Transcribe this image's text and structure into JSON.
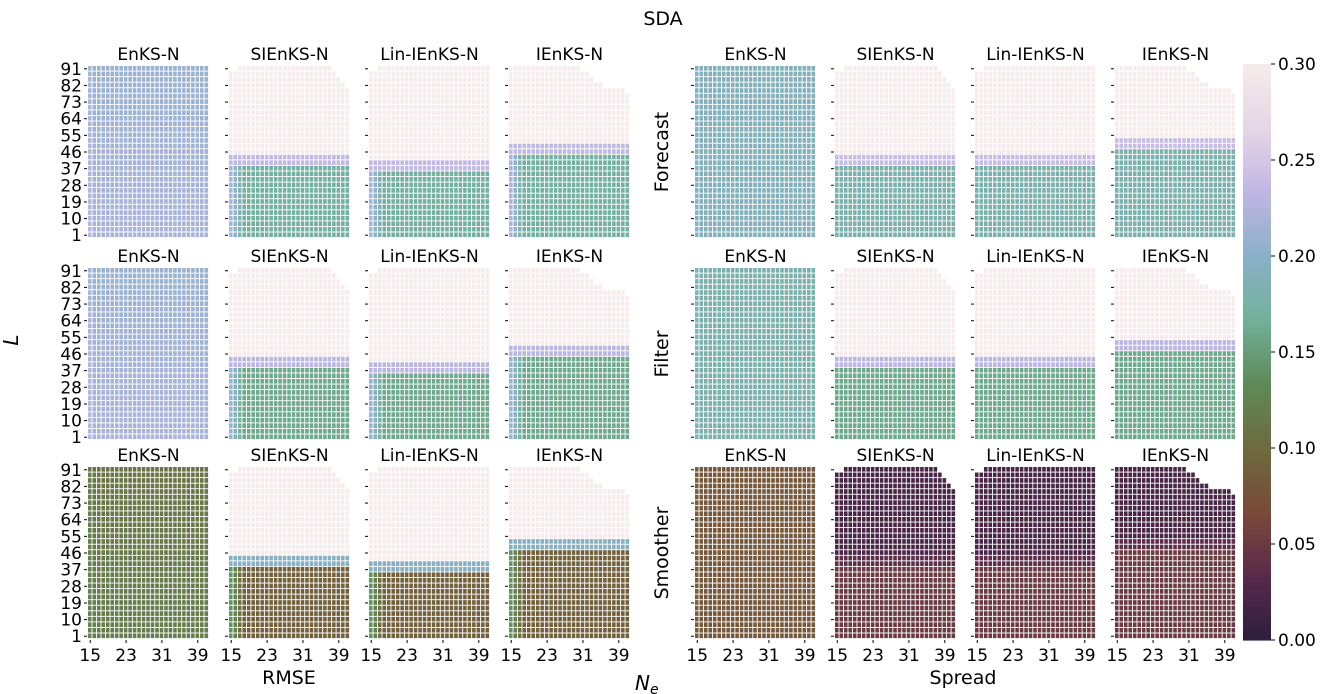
{
  "chart_data": {
    "type": "heatmap",
    "title": "SDA",
    "xlabel": "N_e",
    "ylabel": "L",
    "left_group_label": "RMSE",
    "right_group_label": "Spread",
    "methods": [
      "EnKS-N",
      "SIEnKS-N",
      "Lin-IEnKS-N",
      "IEnKS-N"
    ],
    "rows": [
      "Forecast",
      "Filter",
      "Smoother"
    ],
    "x_values": [
      15,
      16,
      17,
      18,
      19,
      20,
      21,
      22,
      23,
      24,
      25,
      26,
      27,
      28,
      29,
      30,
      31,
      32,
      33,
      34,
      35,
      36,
      37,
      38,
      39,
      40,
      41
    ],
    "x_tick_labels": [
      "15",
      "23",
      "31",
      "39"
    ],
    "y_values": [
      1,
      4,
      7,
      10,
      13,
      16,
      19,
      22,
      25,
      28,
      31,
      34,
      37,
      40,
      43,
      46,
      49,
      52,
      55,
      58,
      61,
      64,
      67,
      70,
      73,
      76,
      79,
      82,
      85,
      88,
      91
    ],
    "y_tick_labels": [
      "91",
      "82",
      "73",
      "64",
      "55",
      "46",
      "37",
      "28",
      "19",
      "10",
      "1"
    ],
    "colorbar": {
      "vmin": 0.0,
      "vmax": 0.3,
      "ticks": [
        "0.30",
        "0.25",
        "0.20",
        "0.15",
        "0.10",
        "0.05",
        "0.00"
      ],
      "colormap": "cubehelix (light pink to dark purple)"
    },
    "color_stops": [
      "#2d1e3e",
      "#5a2a4a",
      "#7a4a3a",
      "#6e6a3e",
      "#5e8a58",
      "#72b09a",
      "#8ab0c8",
      "#c0b6e4",
      "#e6d6e6",
      "#f6ecec"
    ],
    "panels": {
      "RMSE": {
        "Forecast": {
          "EnKS-N": {
            "max_L": [
              91
            ],
            "approx_value": 0.21,
            "value_low_L": 0.22,
            "value_high_L": 0.21
          },
          "SIEnKS-N": {
            "max_L": [
              88,
              88,
              91,
              91,
              91,
              91,
              91,
              91,
              91,
              91,
              91,
              91,
              91,
              91,
              91,
              91,
              91,
              91,
              91,
              91,
              91,
              91,
              91,
              88,
              85,
              82,
              79
            ],
            "transition_L": 43,
            "value_low_L": 0.17,
            "value_high_L": 0.3
          },
          "Lin-IEnKS-N": {
            "max_L": [
              88,
              88,
              91,
              91,
              91,
              91,
              91,
              91,
              91,
              91,
              91,
              91,
              91,
              91,
              91,
              91,
              91,
              91,
              91,
              91,
              91,
              91,
              91,
              91,
              91,
              91,
              91
            ],
            "transition_L": 40,
            "value_low_L": 0.17,
            "value_high_L": 0.3
          },
          "IEnKS-N": {
            "max_L": [
              91,
              91,
              91,
              91,
              91,
              91,
              91,
              91,
              91,
              91,
              91,
              91,
              91,
              91,
              91,
              91,
              88,
              88,
              85,
              82,
              82,
              79,
              79,
              79,
              79,
              79,
              76
            ],
            "transition_L": 49,
            "value_low_L": 0.17,
            "value_high_L": 0.3
          }
        },
        "Filter": {
          "EnKS-N": {
            "max_L": [
              91
            ],
            "approx_value": 0.21,
            "value_low_L": 0.22,
            "value_high_L": 0.21
          },
          "SIEnKS-N": {
            "max_L": [
              88,
              88,
              91,
              91,
              91,
              91,
              91,
              91,
              91,
              91,
              91,
              91,
              91,
              91,
              91,
              91,
              91,
              91,
              91,
              91,
              91,
              91,
              91,
              88,
              85,
              82,
              79
            ],
            "transition_L": 43,
            "value_low_L": 0.16,
            "value_high_L": 0.3
          },
          "Lin-IEnKS-N": {
            "max_L": [
              88,
              88,
              91,
              91,
              91,
              91,
              91,
              91,
              91,
              91,
              91,
              91,
              91,
              91,
              91,
              91,
              91,
              91,
              91,
              91,
              91,
              91,
              91,
              91,
              91,
              91,
              91
            ],
            "transition_L": 40,
            "value_low_L": 0.16,
            "value_high_L": 0.3
          },
          "IEnKS-N": {
            "max_L": [
              91,
              91,
              91,
              91,
              91,
              91,
              91,
              91,
              91,
              91,
              91,
              91,
              91,
              91,
              91,
              91,
              88,
              88,
              85,
              82,
              82,
              79,
              79,
              79,
              79,
              79,
              76
            ],
            "transition_L": 49,
            "value_low_L": 0.16,
            "value_high_L": 0.3
          }
        },
        "Smoother": {
          "EnKS-N": {
            "max_L": [
              91
            ],
            "value_low_L": 0.12,
            "value_high_L": 0.11
          },
          "SIEnKS-N": {
            "max_L": [
              88,
              88,
              91,
              91,
              91,
              91,
              91,
              91,
              91,
              91,
              91,
              91,
              91,
              91,
              91,
              91,
              91,
              91,
              91,
              91,
              91,
              91,
              91,
              88,
              85,
              82,
              79
            ],
            "transition_L": 43,
            "value_low_L": 0.09,
            "value_high_L": 0.3
          },
          "Lin-IEnKS-N": {
            "max_L": [
              88,
              88,
              91,
              91,
              91,
              91,
              91,
              91,
              91,
              91,
              91,
              91,
              91,
              91,
              91,
              91,
              91,
              91,
              91,
              91,
              91,
              91,
              91,
              91,
              91,
              91,
              91
            ],
            "transition_L": 40,
            "value_low_L": 0.09,
            "value_high_L": 0.3
          },
          "IEnKS-N": {
            "max_L": [
              91,
              91,
              91,
              91,
              91,
              91,
              91,
              91,
              91,
              91,
              91,
              91,
              91,
              91,
              91,
              91,
              88,
              88,
              85,
              82,
              82,
              79,
              79,
              79,
              79,
              79,
              76
            ],
            "transition_L": 52,
            "value_low_L": 0.09,
            "value_high_L": 0.3
          }
        }
      },
      "Spread": {
        "Forecast": {
          "EnKS-N": {
            "max_L": [
              91
            ],
            "value_low_L": 0.19,
            "value_high_L": 0.19
          },
          "SIEnKS-N": {
            "max_L": [
              88,
              88,
              91,
              91,
              91,
              91,
              91,
              91,
              91,
              91,
              91,
              91,
              91,
              91,
              91,
              91,
              91,
              91,
              91,
              91,
              91,
              91,
              91,
              88,
              85,
              82,
              79
            ],
            "transition_L": 43,
            "value_low_L": 0.18,
            "value_high_L": 0.3
          },
          "Lin-IEnKS-N": {
            "max_L": [
              88,
              88,
              91,
              91,
              91,
              91,
              91,
              91,
              91,
              91,
              91,
              91,
              91,
              91,
              91,
              91,
              91,
              91,
              91,
              91,
              91,
              91,
              91,
              91,
              91,
              91,
              91
            ],
            "transition_L": 43,
            "value_low_L": 0.18,
            "value_high_L": 0.3
          },
          "IEnKS-N": {
            "max_L": [
              91,
              91,
              91,
              91,
              91,
              91,
              91,
              91,
              91,
              91,
              91,
              91,
              91,
              91,
              91,
              91,
              88,
              88,
              85,
              82,
              82,
              79,
              79,
              79,
              79,
              79,
              76
            ],
            "transition_L": 52,
            "value_low_L": 0.18,
            "value_high_L": 0.3
          }
        },
        "Filter": {
          "EnKS-N": {
            "max_L": [
              91
            ],
            "value_low_L": 0.18,
            "value_high_L": 0.18
          },
          "SIEnKS-N": {
            "max_L": [
              88,
              88,
              91,
              91,
              91,
              91,
              91,
              91,
              91,
              91,
              91,
              91,
              91,
              91,
              91,
              91,
              91,
              91,
              91,
              91,
              91,
              91,
              91,
              88,
              85,
              82,
              79
            ],
            "transition_L": 43,
            "value_low_L": 0.16,
            "value_high_L": 0.3
          },
          "Lin-IEnKS-N": {
            "max_L": [
              88,
              88,
              91,
              91,
              91,
              91,
              91,
              91,
              91,
              91,
              91,
              91,
              91,
              91,
              91,
              91,
              91,
              91,
              91,
              91,
              91,
              91,
              91,
              91,
              91,
              91,
              91
            ],
            "transition_L": 43,
            "value_low_L": 0.16,
            "value_high_L": 0.3
          },
          "IEnKS-N": {
            "max_L": [
              91,
              91,
              91,
              91,
              91,
              91,
              91,
              91,
              91,
              91,
              91,
              91,
              91,
              91,
              91,
              91,
              88,
              88,
              85,
              82,
              82,
              79,
              79,
              79,
              79,
              79,
              76
            ],
            "transition_L": 52,
            "value_low_L": 0.16,
            "value_high_L": 0.3
          }
        },
        "Smoother": {
          "EnKS-N": {
            "max_L": [
              91
            ],
            "value_low_L": 0.08,
            "value_high_L": 0.08
          },
          "SIEnKS-N": {
            "max_L": [
              88,
              88,
              91,
              91,
              91,
              91,
              91,
              91,
              91,
              91,
              91,
              91,
              91,
              91,
              91,
              91,
              91,
              91,
              91,
              91,
              91,
              91,
              91,
              88,
              85,
              82,
              79
            ],
            "transition_L": 43,
            "value_low_L": 0.05,
            "value_high_L": 0.02
          },
          "Lin-IEnKS-N": {
            "max_L": [
              88,
              88,
              91,
              91,
              91,
              91,
              91,
              91,
              91,
              91,
              91,
              91,
              91,
              91,
              91,
              91,
              91,
              91,
              91,
              91,
              91,
              91,
              91,
              91,
              91,
              91,
              91
            ],
            "transition_L": 43,
            "value_low_L": 0.05,
            "value_high_L": 0.02
          },
          "IEnKS-N": {
            "max_L": [
              91,
              91,
              91,
              91,
              91,
              91,
              91,
              91,
              91,
              91,
              91,
              91,
              91,
              91,
              91,
              91,
              88,
              88,
              85,
              82,
              82,
              79,
              79,
              79,
              79,
              79,
              76
            ],
            "transition_L": 52,
            "value_low_L": 0.05,
            "value_high_L": 0.02
          }
        }
      }
    }
  }
}
